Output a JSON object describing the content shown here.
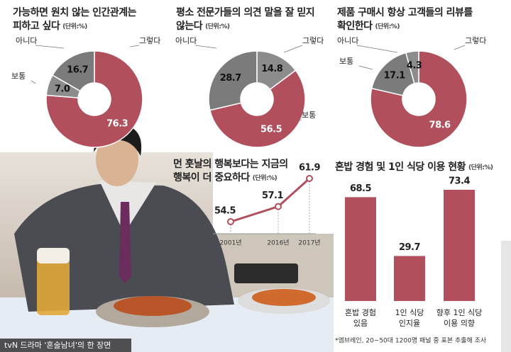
{
  "chart_data": [
    {
      "type": "donut",
      "title": [
        "가능하면 원치 않는 인간관계는",
        "피하고 싶다"
      ],
      "unit": "(단위:%)",
      "categories": [
        "그렇다",
        "보통",
        "아니다"
      ],
      "values": [
        76.3,
        7.0,
        16.7
      ],
      "value_labels": [
        "76.3",
        "7.0",
        "16.7"
      ],
      "colors": [
        "#b14f5d",
        "#8c8c8c",
        "#7b7b7b"
      ]
    },
    {
      "type": "donut",
      "title": [
        "평소 전문가들의 의견 말을 잘 믿지",
        "않는다"
      ],
      "unit": "(단위:%)",
      "categories": [
        "그렇다",
        "보통",
        "아니다"
      ],
      "values": [
        14.8,
        56.5,
        28.7
      ],
      "value_labels": [
        "14.8",
        "56.5",
        "28.7"
      ],
      "colors": [
        "#8c8c8c",
        "#b14f5d",
        "#7b7b7b"
      ]
    },
    {
      "type": "donut",
      "title": [
        "제품 구매시 항상 고객들의 리뷰를",
        "확인한다"
      ],
      "unit": "(단위:%)",
      "categories": [
        "그렇다",
        "보통",
        "아니다"
      ],
      "values": [
        78.6,
        17.1,
        4.3
      ],
      "value_labels": [
        "78.6",
        "17.1",
        "4.3"
      ],
      "colors": [
        "#b14f5d",
        "#7b7b7b",
        "#8c8c8c"
      ]
    },
    {
      "type": "line",
      "title": [
        "먼 훗날의 행복보다는 지금의",
        "행복이 더 중요하다"
      ],
      "unit": "(단위:%)",
      "categories": [
        "2001년",
        "2016년",
        "2017년"
      ],
      "values": [
        54.5,
        57.1,
        61.9
      ],
      "color": "#b14f5d"
    },
    {
      "type": "bar",
      "title": "혼밥 경험 및 1인 식당 이용 현황",
      "unit": "(단위:%)",
      "categories": [
        [
          "혼밥 경험",
          "있음"
        ],
        [
          "1인 식당",
          "인지율"
        ],
        [
          "향후 1인 식당",
          "이용 의향"
        ]
      ],
      "values": [
        68.5,
        29.7,
        73.4
      ],
      "color": "#b14f5d",
      "source": "*엠브레인, 20~50대 1200명 패널 중 표본 추출해 조사"
    }
  ],
  "caption": "tvN 드라마 '혼술남녀'의 한 장면"
}
